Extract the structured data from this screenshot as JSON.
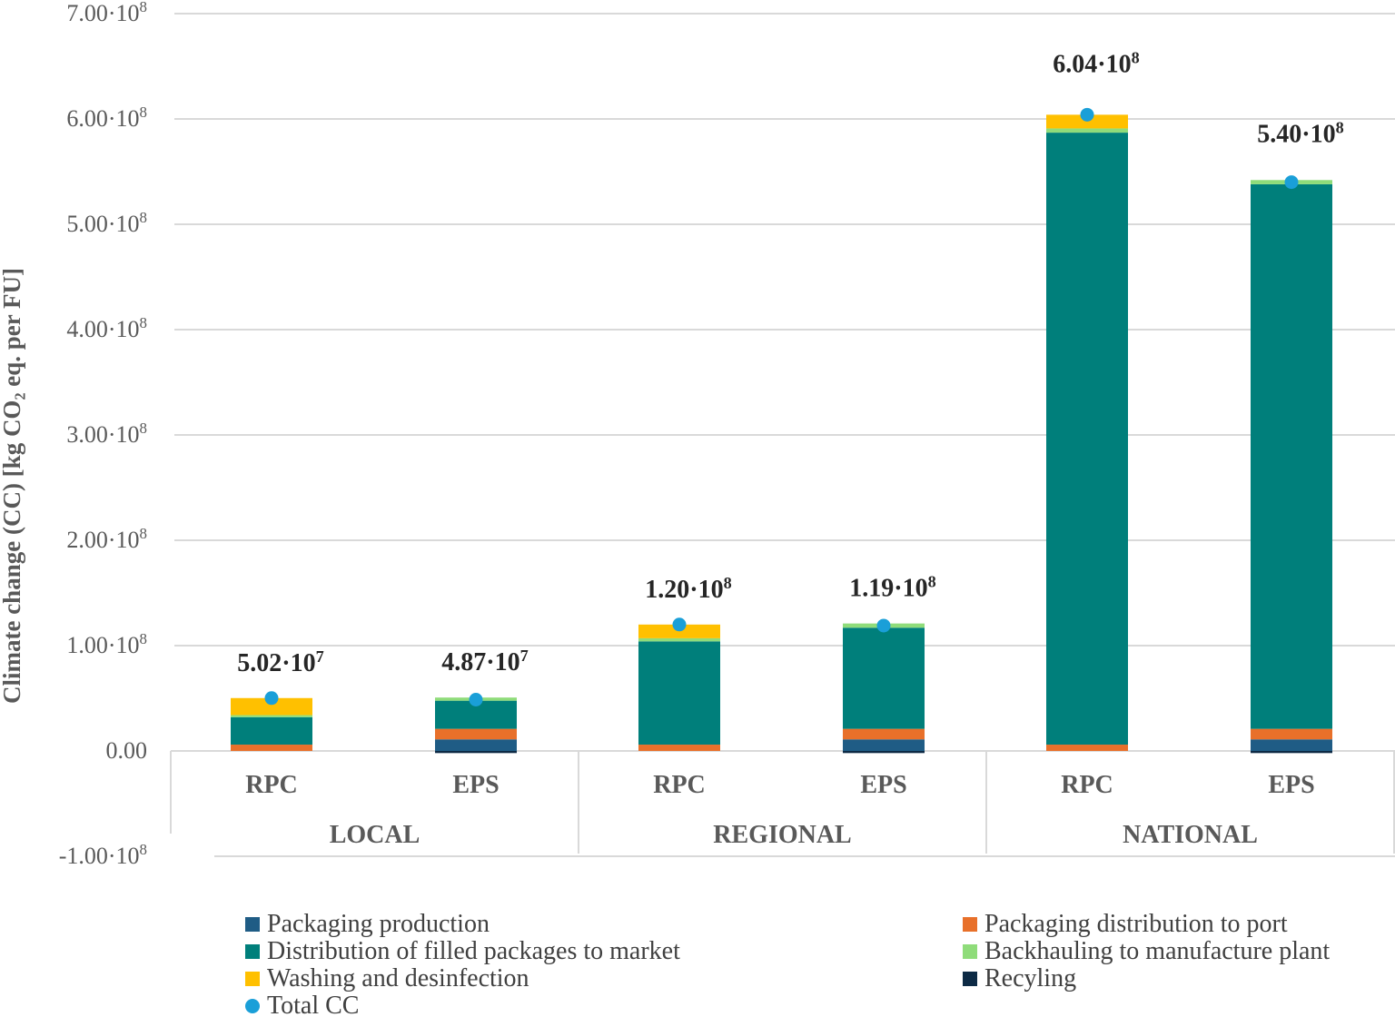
{
  "chart_data": {
    "type": "bar",
    "stacked": true,
    "ylabel": "Climate change (CC) [kg CO2 eq. per FU]",
    "ylim": [
      -100000000,
      700000000
    ],
    "yticks": [
      {
        "m": "7.00",
        "e": "8",
        "v": 700000000
      },
      {
        "m": "6.00",
        "e": "8",
        "v": 600000000
      },
      {
        "m": "5.00",
        "e": "8",
        "v": 500000000
      },
      {
        "m": "4.00",
        "e": "8",
        "v": 400000000
      },
      {
        "m": "3.00",
        "e": "8",
        "v": 300000000
      },
      {
        "m": "2.00",
        "e": "8",
        "v": 200000000
      },
      {
        "m": "1.00",
        "e": "8",
        "v": 100000000
      },
      {
        "m": "0.00",
        "e": "",
        "v": 0
      },
      {
        "m": "-1.00",
        "e": "8",
        "v": -100000000
      }
    ],
    "grid": true,
    "groups": [
      "LOCAL",
      "REGIONAL",
      "NATIONAL"
    ],
    "categories": [
      "RPC",
      "EPS",
      "RPC",
      "EPS",
      "RPC",
      "EPS"
    ],
    "series": [
      {
        "name": "Packaging production",
        "color": "#1f5c85",
        "values": [
          0,
          11000000,
          0,
          11000000,
          0,
          11000000
        ]
      },
      {
        "name": "Packaging distribution to port",
        "color": "#e8702a",
        "values": [
          6000000,
          10000000,
          6000000,
          10000000,
          6000000,
          10000000
        ]
      },
      {
        "name": "Distribution of filled packages to market",
        "color": "#007f7b",
        "values": [
          26000000,
          26700000,
          98000000,
          96000000,
          581000000,
          517000000
        ]
      },
      {
        "name": "Backhauling to manufacture plant",
        "color": "#8fdc7a",
        "values": [
          2000000,
          3000000,
          3000000,
          4000000,
          4000000,
          4000000
        ]
      },
      {
        "name": "Washing and desinfection",
        "color": "#ffc000",
        "values": [
          16200000,
          0,
          13000000,
          0,
          13000000,
          0
        ]
      },
      {
        "name": "Recyling",
        "color": "#0d2a45",
        "values": [
          0,
          -2000000,
          0,
          -2000000,
          0,
          -2000000
        ]
      }
    ],
    "total": {
      "name": "Total CC",
      "color": "#1a9fd8",
      "values": [
        50200000,
        48700000,
        120000000,
        119000000,
        604000000,
        540000000
      ]
    },
    "total_labels": [
      {
        "m": "5.02",
        "e": "7"
      },
      {
        "m": "4.87",
        "e": "7"
      },
      {
        "m": "1.20",
        "e": "8"
      },
      {
        "m": "1.19",
        "e": "8"
      },
      {
        "m": "6.04",
        "e": "8"
      },
      {
        "m": "5.40",
        "e": "8"
      }
    ],
    "legend_placement": "bottom"
  }
}
